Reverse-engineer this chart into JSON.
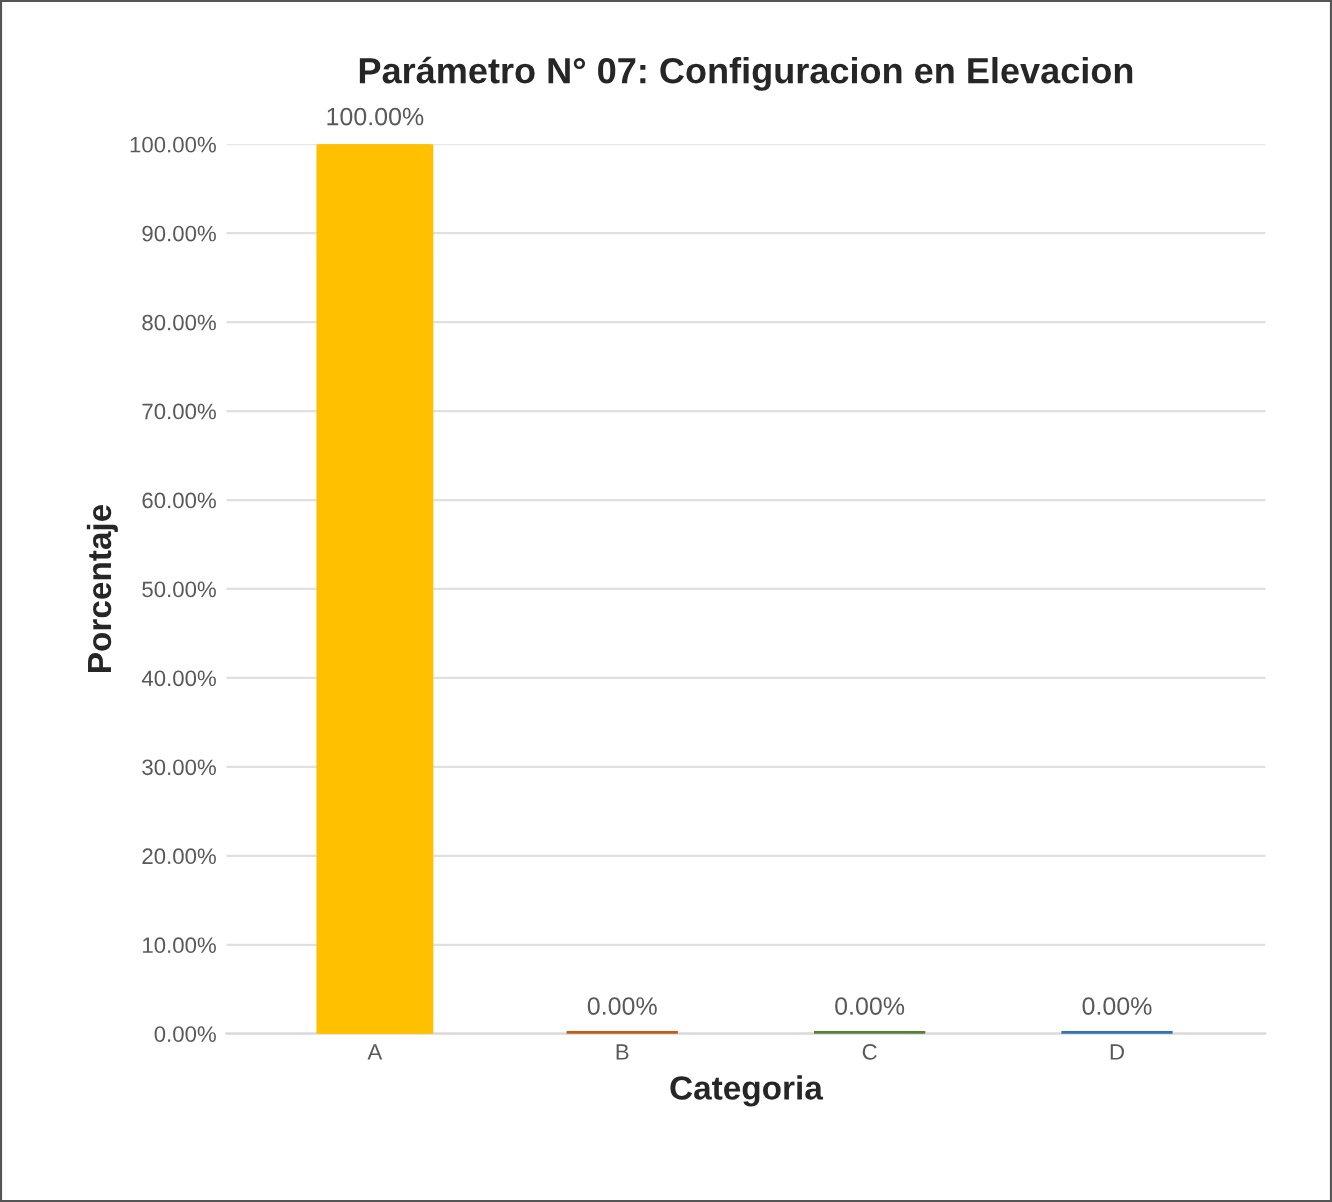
{
  "chart_data": {
    "type": "bar",
    "title": "Parámetro N° 07: Configuracion en Elevacion",
    "xlabel": "Categoria",
    "ylabel": "Porcentaje",
    "categories": [
      "A",
      "B",
      "C",
      "D"
    ],
    "values": [
      100,
      0,
      0,
      0
    ],
    "colors": [
      "#ffc000",
      "#c55a11",
      "#548235",
      "#2e75b6"
    ],
    "value_labels": [
      "100.00%",
      "0.00%",
      "0.00%",
      "0.00%"
    ],
    "ylim": [
      0,
      100
    ],
    "yticks": [
      {
        "value": 0,
        "label": "0.00%"
      },
      {
        "value": 10,
        "label": "10.00%"
      },
      {
        "value": 20,
        "label": "20.00%"
      },
      {
        "value": 30,
        "label": "30.00%"
      },
      {
        "value": 40,
        "label": "40.00%"
      },
      {
        "value": 50,
        "label": "50.00%"
      },
      {
        "value": 60,
        "label": "60.00%"
      },
      {
        "value": 70,
        "label": "70.00%"
      },
      {
        "value": 80,
        "label": "80.00%"
      },
      {
        "value": 90,
        "label": "90.00%"
      },
      {
        "value": 100,
        "label": "100.00%"
      }
    ],
    "grid": "y"
  }
}
